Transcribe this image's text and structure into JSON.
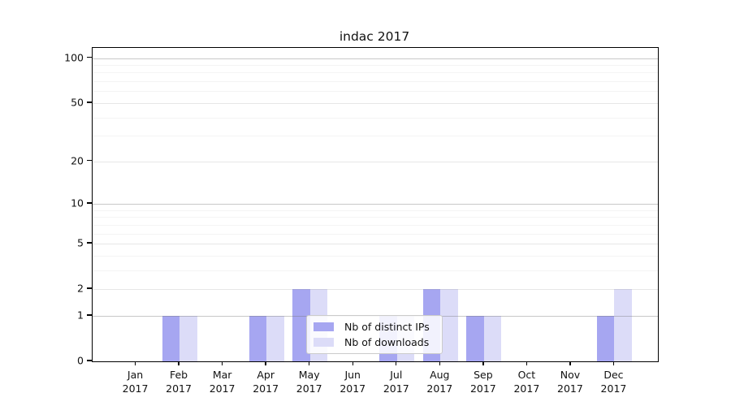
{
  "chart_data": {
    "type": "bar",
    "title": "indac 2017",
    "categories": [
      {
        "month": "Jan",
        "year": "2017"
      },
      {
        "month": "Feb",
        "year": "2017"
      },
      {
        "month": "Mar",
        "year": "2017"
      },
      {
        "month": "Apr",
        "year": "2017"
      },
      {
        "month": "May",
        "year": "2017"
      },
      {
        "month": "Jun",
        "year": "2017"
      },
      {
        "month": "Jul",
        "year": "2017"
      },
      {
        "month": "Aug",
        "year": "2017"
      },
      {
        "month": "Sep",
        "year": "2017"
      },
      {
        "month": "Oct",
        "year": "2017"
      },
      {
        "month": "Nov",
        "year": "2017"
      },
      {
        "month": "Dec",
        "year": "2017"
      }
    ],
    "series": [
      {
        "name": "Nb of distinct IPs",
        "color": "#a6a6f1",
        "values": [
          0,
          1,
          0,
          1,
          2,
          0,
          1,
          2,
          1,
          0,
          0,
          1
        ]
      },
      {
        "name": "Nb of downloads",
        "color": "#dcdcf8",
        "values": [
          0,
          1,
          0,
          1,
          2,
          0,
          1,
          2,
          1,
          0,
          0,
          2
        ]
      }
    ],
    "y_axis": {
      "scale": "log1p",
      "ticks": [
        0,
        1,
        2,
        5,
        10,
        20,
        50,
        100
      ],
      "decade_ticks": [
        1,
        10,
        100
      ],
      "minor_ticks": [
        3,
        4,
        6,
        7,
        8,
        9,
        30,
        40,
        60,
        70,
        80,
        90
      ],
      "ylim": [
        0,
        117
      ]
    },
    "grid": true,
    "legend_position": "lower center"
  },
  "colors": {
    "bar_series_1": "#a6a6f1",
    "bar_series_2": "#dcdcf8",
    "spine": "#000000",
    "text": "#111111"
  }
}
